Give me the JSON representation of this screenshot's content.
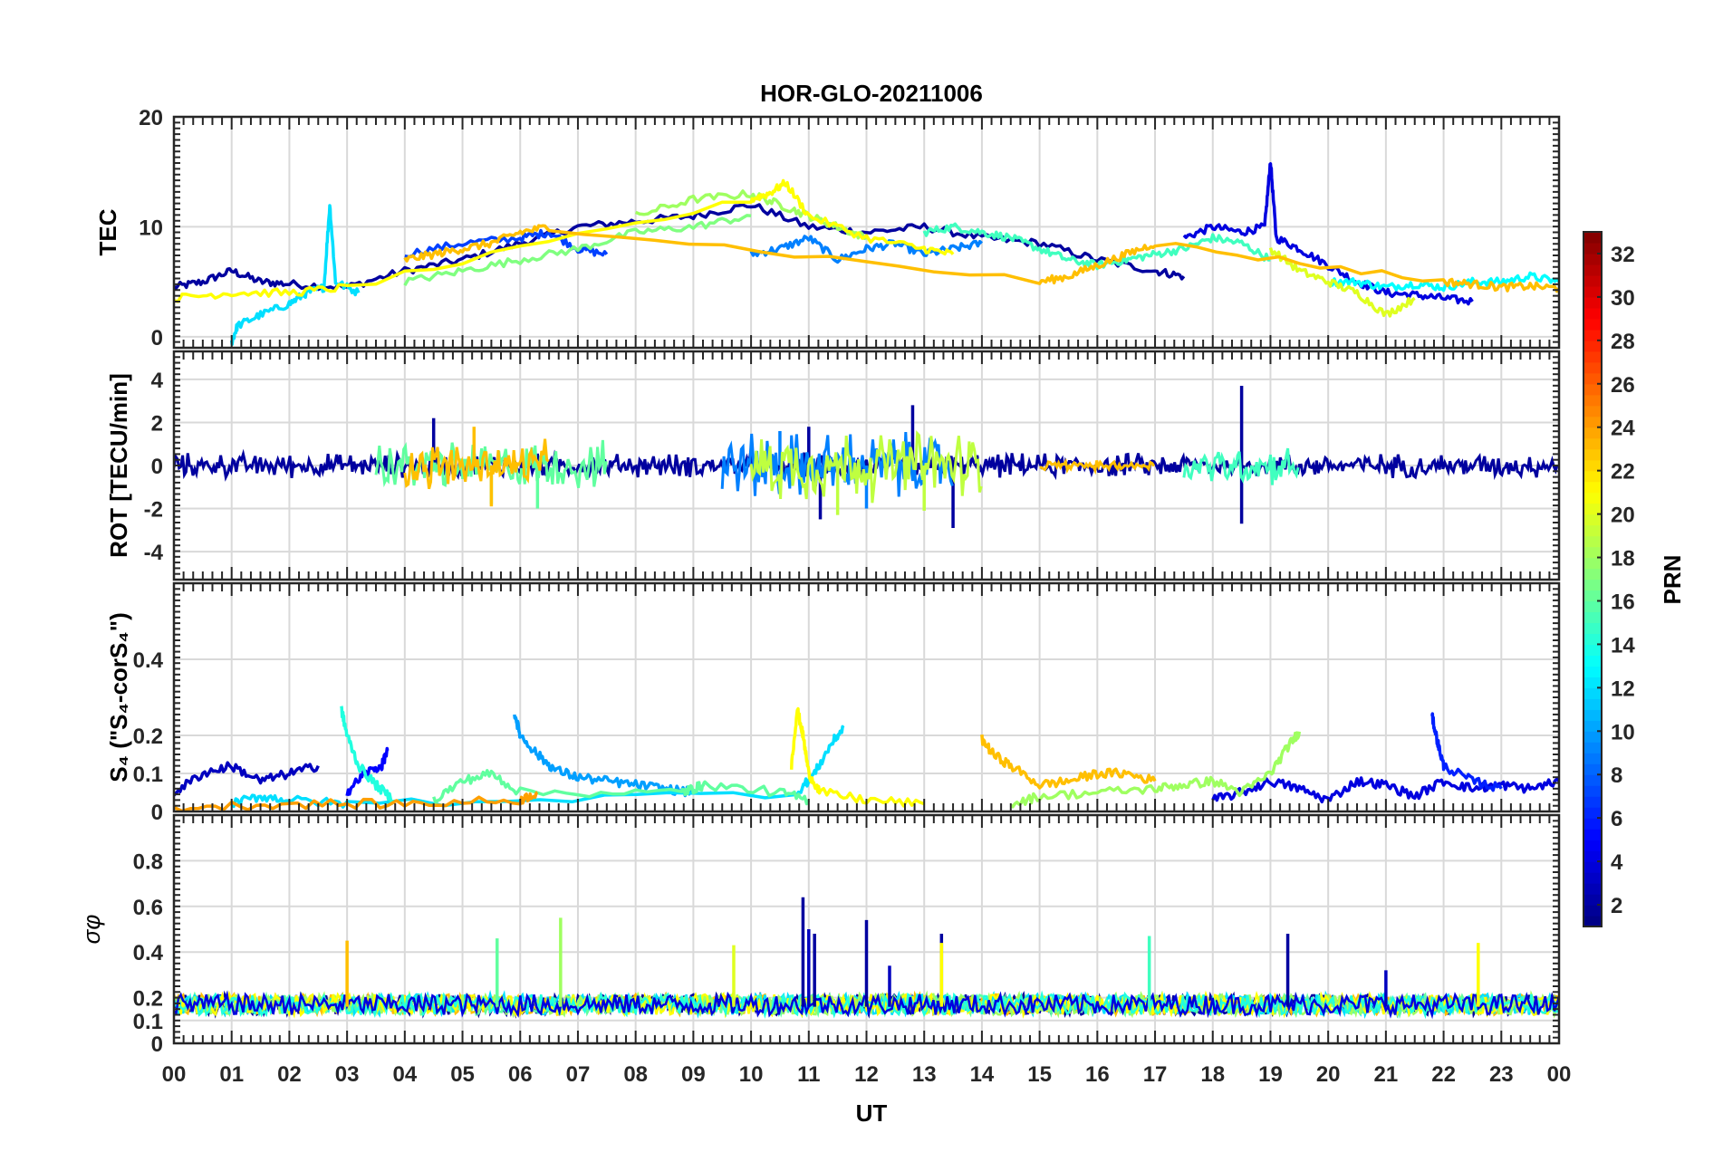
{
  "chart_data": {
    "title": "HOR-GLO-20211006",
    "type": "line",
    "xlabel": "UT",
    "xlim": [
      0,
      24
    ],
    "x_tick_labels": [
      "00",
      "01",
      "02",
      "03",
      "04",
      "05",
      "06",
      "07",
      "08",
      "09",
      "10",
      "11",
      "12",
      "13",
      "14",
      "15",
      "16",
      "17",
      "18",
      "19",
      "20",
      "21",
      "22",
      "23",
      "00"
    ],
    "grid": true,
    "panels": [
      {
        "id": "tec",
        "ylabel": "TEC",
        "ylim": [
          -1,
          20
        ],
        "yticks": [
          0,
          10,
          20
        ],
        "ytick_labels": [
          "0",
          "10",
          "20"
        ],
        "series": [
          {
            "prn": 2,
            "x": [
              0,
              0.5,
              1,
              1.5,
              2,
              3,
              4,
              5,
              6,
              7,
              8,
              9,
              10,
              11,
              12,
              13,
              14,
              15,
              16,
              17,
              17.5
            ],
            "y": [
              4.5,
              5,
              6,
              5,
              4.8,
              4.5,
              6,
              7,
              8.5,
              10,
              10.5,
              11,
              12,
              10,
              9.5,
              10,
              9,
              8.5,
              7,
              6,
              5.5
            ]
          },
          {
            "prn": 4,
            "x": [
              17.5,
              18,
              18.5,
              18.9,
              19,
              19.1,
              19.5,
              20,
              20.5,
              21,
              21.5,
              22,
              22.5
            ],
            "y": [
              9,
              10,
              9.5,
              10,
              16,
              9,
              8,
              6.5,
              5,
              4,
              3.8,
              3.5,
              3.2
            ]
          },
          {
            "prn": 7,
            "x": [
              4,
              5,
              6,
              6.5,
              7,
              7.5
            ],
            "y": [
              7.5,
              8.5,
              9,
              9.5,
              8,
              7.5
            ]
          },
          {
            "prn": 9,
            "x": [
              10,
              10.5,
              11,
              11.5,
              12,
              12.5,
              13,
              13.5,
              14
            ],
            "y": [
              7.5,
              8,
              9,
              7,
              8,
              8.5,
              7.5,
              8,
              8.5
            ]
          },
          {
            "prn": 12,
            "x": [
              1,
              1.1,
              1.5,
              2,
              2.3,
              2.6,
              2.7,
              2.8,
              3.2
            ],
            "y": [
              -0.5,
              1,
              2,
              3,
              4,
              4.5,
              12,
              5,
              4
            ]
          },
          {
            "prn": 13,
            "x": [
              20,
              20.5,
              21,
              21.5,
              22,
              22.5,
              23,
              23.5,
              24
            ],
            "y": [
              5,
              5,
              4.5,
              4.8,
              4.5,
              5,
              5,
              5.5,
              5
            ]
          },
          {
            "prn": 15,
            "x": [
              13,
              13.5,
              14,
              14.5,
              15,
              15.5,
              16,
              16.5,
              17,
              17.5,
              18,
              18.5,
              19
            ],
            "y": [
              9.5,
              10,
              9.5,
              9,
              8,
              7,
              6.5,
              7,
              7.5,
              8,
              9,
              8.5,
              7
            ]
          },
          {
            "prn": 17,
            "x": [
              4,
              5,
              6,
              7,
              8,
              9,
              10
            ],
            "y": [
              5,
              6,
              7,
              8,
              9.5,
              10,
              11
            ]
          },
          {
            "prn": 18,
            "x": [
              8,
              9,
              10,
              10.5,
              11,
              11.5,
              12
            ],
            "y": [
              11,
              12.5,
              13,
              12,
              11,
              10,
              9
            ]
          },
          {
            "prn": 20,
            "x": [
              19,
              19.5,
              20,
              20.5,
              21,
              21.5
            ],
            "y": [
              8,
              6,
              5,
              4,
              2,
              3.5
            ]
          },
          {
            "prn": 21,
            "x": [
              0,
              1,
              2,
              3,
              10,
              10.3,
              10.6,
              11,
              12,
              13,
              13.5
            ],
            "y": [
              3.5,
              4,
              4,
              4.5,
              12.5,
              13,
              14,
              11,
              9,
              8,
              7.5
            ]
          },
          {
            "prn": 23,
            "x": [
              4,
              4.5,
              5,
              5.5,
              6,
              6.5,
              15,
              15.5,
              16,
              16.5,
              17,
              22,
              22.5,
              23,
              23.5,
              24
            ],
            "y": [
              7,
              7.5,
              8,
              8.5,
              9.5,
              10,
              5,
              5.5,
              6.5,
              7.5,
              8.5,
              5,
              4.8,
              4.5,
              4.6,
              4.4
            ]
          }
        ]
      },
      {
        "id": "rot",
        "ylabel": "ROT [TECU/min]",
        "ylim": [
          -5.3,
          5.3
        ],
        "yticks": [
          -4,
          -2,
          0,
          2,
          4
        ],
        "ytick_labels": [
          "-4",
          "-2",
          "0",
          "2",
          "4"
        ],
        "active_spans": [
          {
            "prn": 2,
            "x0": 0,
            "x1": 24,
            "amp": 0.5,
            "spikes": [
              [
                4.5,
                2.2
              ],
              [
                11.2,
                -2.5
              ],
              [
                12.8,
                2.8
              ],
              [
                13.5,
                -2.9
              ],
              [
                18.5,
                3.7
              ],
              [
                18.5,
                -2.7
              ],
              [
                11,
                1.8
              ]
            ]
          },
          {
            "prn": 9,
            "x0": 9.5,
            "x1": 13.5,
            "amp": 1.4,
            "spikes": [
              [
                10.5,
                1.6
              ],
              [
                12,
                -2
              ]
            ]
          },
          {
            "prn": 16,
            "x0": 3.5,
            "x1": 7.5,
            "amp": 1.0,
            "spikes": [
              [
                5.5,
                -1.8
              ],
              [
                6.3,
                -2
              ]
            ]
          },
          {
            "prn": 19,
            "x0": 10,
            "x1": 14,
            "amp": 1.5,
            "spikes": [
              [
                11.5,
                -2.3
              ],
              [
                13,
                -2.1
              ]
            ]
          },
          {
            "prn": 23,
            "x0": 4,
            "x1": 6.5,
            "amp": 1.0,
            "spikes": [
              [
                5.2,
                1.8
              ],
              [
                5.5,
                -1.9
              ]
            ]
          },
          {
            "prn": 23,
            "x0": 15,
            "x1": 17,
            "amp": 0.2,
            "spikes": []
          },
          {
            "prn": 15,
            "x0": 17.5,
            "x1": 19.5,
            "amp": 0.8,
            "spikes": []
          }
        ]
      },
      {
        "id": "s4",
        "ylabel": "S₄ (\"S₄-corS₄\")",
        "ylim": [
          0,
          0.6
        ],
        "yticks": [
          0,
          0.1,
          0.2,
          0.4
        ],
        "ytick_labels": [
          "0",
          "0.1",
          "0.2",
          "0.4"
        ],
        "series": [
          {
            "prn": 3,
            "x": [
              0,
              0.5,
              1,
              1.5,
              2,
              2.5
            ],
            "y": [
              0.05,
              0.1,
              0.12,
              0.08,
              0.1,
              0.12
            ]
          },
          {
            "prn": 5,
            "x": [
              3,
              3.3,
              3.6,
              3.7
            ],
            "y": [
              0.05,
              0.1,
              0.12,
              0.16
            ]
          },
          {
            "prn": 4,
            "x": [
              18,
              18.5,
              19,
              19.5,
              20,
              20.5,
              21,
              21.5,
              22,
              22.5,
              23,
              23.5,
              24
            ],
            "y": [
              0.03,
              0.05,
              0.08,
              0.06,
              0.03,
              0.08,
              0.07,
              0.04,
              0.08,
              0.06,
              0.07,
              0.06,
              0.08
            ]
          },
          {
            "prn": 6,
            "x": [
              21.8,
              21.9,
              22,
              22.5,
              23
            ],
            "y": [
              0.25,
              0.18,
              0.12,
              0.08,
              0.06
            ]
          },
          {
            "prn": 10,
            "x": [
              5.9,
              6,
              6.3,
              6.6,
              7,
              7.5,
              8,
              8.5,
              9
            ],
            "y": [
              0.26,
              0.2,
              0.15,
              0.11,
              0.09,
              0.08,
              0.07,
              0.06,
              0.05
            ]
          },
          {
            "prn": 12,
            "x": [
              1,
              1.5,
              2,
              3,
              10.8,
              11.1,
              11.4,
              11.6
            ],
            "y": [
              0.02,
              0.04,
              0.03,
              0.02,
              0.05,
              0.1,
              0.18,
              0.22
            ]
          },
          {
            "prn": 14,
            "x": [
              2.9,
              3,
              3.2,
              3.5,
              3.8
            ],
            "y": [
              0.27,
              0.2,
              0.12,
              0.07,
              0.03
            ]
          },
          {
            "prn": 16,
            "x": [
              4.5,
              5,
              5.5,
              6,
              8.8,
              9,
              9.2,
              10.5,
              11
            ],
            "y": [
              0.03,
              0.08,
              0.1,
              0.05,
              0.05,
              0.06,
              0.07,
              0.05,
              0.03
            ]
          },
          {
            "prn": 18,
            "x": [
              14.5,
              15,
              16,
              17,
              17.5,
              18,
              18.5,
              19,
              19.3,
              19.5
            ],
            "y": [
              0.02,
              0.04,
              0.05,
              0.06,
              0.07,
              0.08,
              0.05,
              0.1,
              0.17,
              0.21
            ]
          },
          {
            "prn": 21,
            "x": [
              10.7,
              10.8,
              10.9,
              11,
              11.2,
              12,
              13
            ],
            "y": [
              0.12,
              0.27,
              0.2,
              0.1,
              0.05,
              0.03,
              0.02
            ]
          },
          {
            "prn": 23,
            "x": [
              14,
              14.2,
              14.5,
              15,
              15.5,
              16,
              16.5,
              17
            ],
            "y": [
              0.19,
              0.15,
              0.12,
              0.07,
              0.08,
              0.1,
              0.1,
              0.08
            ]
          },
          {
            "prn": 24,
            "x": [
              0,
              2,
              4,
              6,
              6.3
            ],
            "y": [
              0.01,
              0.02,
              0.02,
              0.03,
              0.05
            ]
          }
        ]
      },
      {
        "id": "sigphi",
        "ylabel": "σφ",
        "ylim": [
          0,
          1
        ],
        "yticks": [
          0,
          0.1,
          0.2,
          0.4,
          0.6,
          0.8
        ],
        "ytick_labels": [
          "0",
          "0.1",
          "0.2",
          "0.4",
          "0.6",
          "0.8"
        ],
        "baseline": 0.17,
        "spikes": [
          {
            "prn": 23,
            "x": 3.0,
            "y": 0.45
          },
          {
            "prn": 16,
            "x": 5.6,
            "y": 0.46
          },
          {
            "prn": 18,
            "x": 6.7,
            "y": 0.55
          },
          {
            "prn": 20,
            "x": 9.7,
            "y": 0.43
          },
          {
            "prn": 2,
            "x": 10.9,
            "y": 0.64
          },
          {
            "prn": 3,
            "x": 11.0,
            "y": 0.5
          },
          {
            "prn": 2,
            "x": 11.1,
            "y": 0.48
          },
          {
            "prn": 2,
            "x": 12.0,
            "y": 0.54
          },
          {
            "prn": 3,
            "x": 12.4,
            "y": 0.34
          },
          {
            "prn": 2,
            "x": 13.3,
            "y": 0.48
          },
          {
            "prn": 21,
            "x": 13.3,
            "y": 0.44
          },
          {
            "prn": 15,
            "x": 16.9,
            "y": 0.47
          },
          {
            "prn": 2,
            "x": 19.3,
            "y": 0.48
          },
          {
            "prn": 3,
            "x": 21.0,
            "y": 0.32
          },
          {
            "prn": 21,
            "x": 22.6,
            "y": 0.44
          }
        ]
      }
    ],
    "colorbar": {
      "label": "PRN",
      "range": [
        1,
        33
      ],
      "ticks": [
        2,
        4,
        6,
        8,
        10,
        12,
        14,
        16,
        18,
        20,
        22,
        24,
        26,
        28,
        30,
        32
      ],
      "colormap": "jet"
    }
  }
}
